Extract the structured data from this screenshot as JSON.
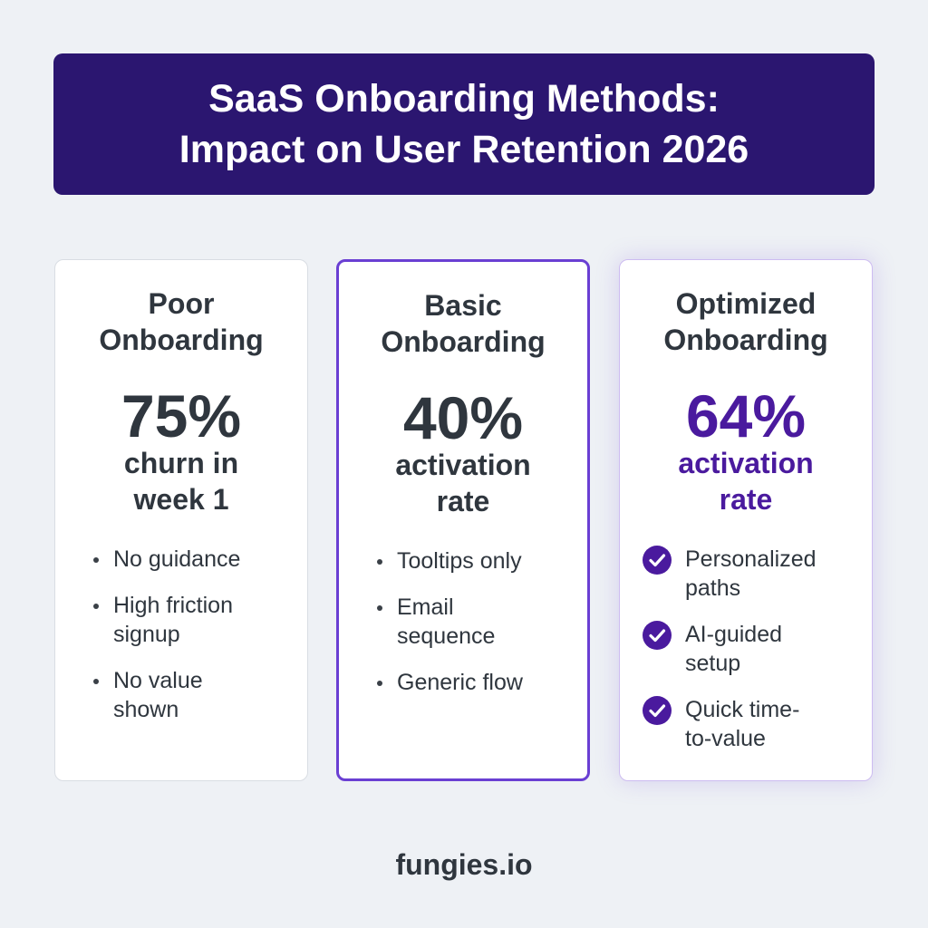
{
  "banner": {
    "title_lines": [
      "SaaS Onboarding Methods:",
      "Impact on User Retention 2026"
    ]
  },
  "cards": [
    {
      "title_lines": [
        "Poor",
        "Onboarding"
      ],
      "stat": "75%",
      "label_lines": [
        "churn in",
        "week 1"
      ],
      "bullets": [
        {
          "lines": [
            "No guidance"
          ]
        },
        {
          "lines": [
            "High friction",
            "signup"
          ]
        },
        {
          "lines": [
            "No value",
            "shown"
          ]
        }
      ]
    },
    {
      "title_lines": [
        "Basic",
        "Onboarding"
      ],
      "stat": "40%",
      "label_lines": [
        "activation",
        "rate"
      ],
      "bullets": [
        {
          "lines": [
            "Tooltips only"
          ]
        },
        {
          "lines": [
            "Email",
            "sequence"
          ]
        },
        {
          "lines": [
            "Generic flow"
          ]
        }
      ]
    },
    {
      "title_lines": [
        "Optimized",
        "Onboarding"
      ],
      "stat": "64%",
      "label_lines": [
        "activation",
        "rate"
      ],
      "bullets": [
        {
          "lines": [
            "Personalized",
            "paths"
          ]
        },
        {
          "lines": [
            "AI-guided",
            "setup"
          ]
        },
        {
          "lines": [
            "Quick time-",
            "to-value"
          ]
        }
      ]
    }
  ],
  "footer": {
    "brand": "fungies.io"
  },
  "colors": {
    "banner_bg": "#2b1670",
    "accent_purple": "#6a3fd3",
    "optimized_text": "#4a1a9e",
    "check_fill": "#4a1a9e",
    "page_bg": "#eef1f5",
    "text_dark": "#2f363e"
  },
  "icons": {
    "bullet": "dot-icon",
    "check": "check-circle-icon"
  }
}
